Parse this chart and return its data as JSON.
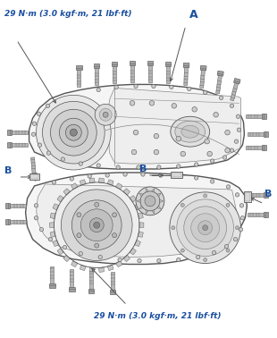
{
  "bg_color": "#ffffff",
  "line_color": "#555555",
  "line_color_light": "#888888",
  "bolt_body": "#b8b8b8",
  "bolt_dark": "#666666",
  "bolt_head": "#a0a0a0",
  "label_color": "#1a4fa0",
  "label_A": "A",
  "label_B": "B",
  "torque_label_top": "29 N·m (3.0 kgf·m, 21 lbf·ft)",
  "torque_label_bot": "29 N·m (3.0 kgf·m, 21 lbf·ft)",
  "fig_width": 3.1,
  "fig_height": 3.78,
  "dpi": 100
}
